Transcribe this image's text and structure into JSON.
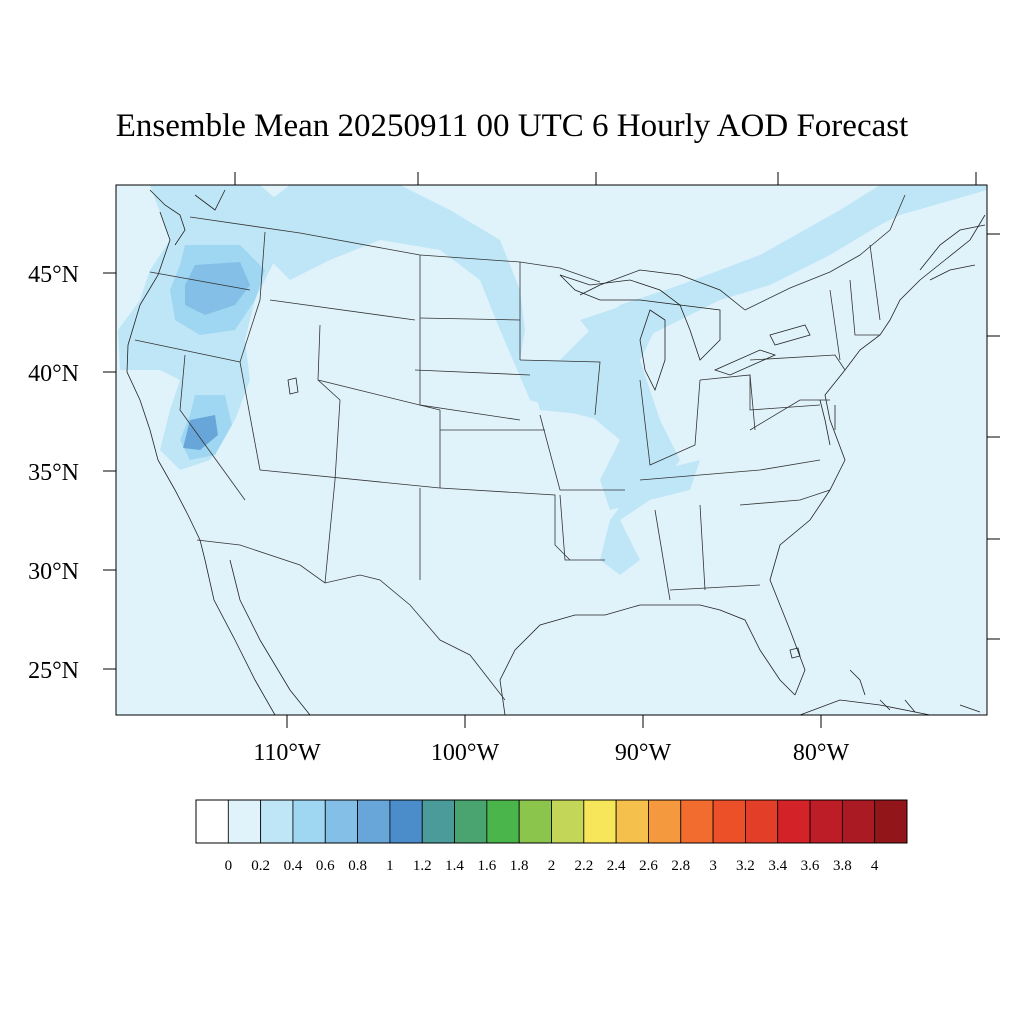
{
  "title": "Ensemble Mean 20250911 00 UTC 6 Hourly AOD Forecast",
  "lat_labels": [
    "45°N",
    "40°N",
    "35°N",
    "30°N",
    "25°N"
  ],
  "lon_labels": [
    "110°W",
    "100°W",
    "90°W",
    "80°W"
  ],
  "colorbar": {
    "labels": [
      "0",
      "0.2",
      "0.4",
      "0.6",
      "0.8",
      "1",
      "1.2",
      "1.4",
      "1.6",
      "1.8",
      "2",
      "2.2",
      "2.4",
      "2.6",
      "2.8",
      "3",
      "3.2",
      "3.4",
      "3.6",
      "3.8",
      "4"
    ],
    "colors": [
      "#ffffff",
      "#e0f3fb",
      "#bfe6f7",
      "#9fd7f3",
      "#83bfe6",
      "#68a6da",
      "#4b8dca",
      "#4a9b9a",
      "#49a46f",
      "#4ab54a",
      "#8bc54c",
      "#c4d657",
      "#f7e65a",
      "#f6c04c",
      "#f4993d",
      "#f26c30",
      "#ec5029",
      "#e33e27",
      "#d42229",
      "#bd1d26",
      "#aa1a22",
      "#921619"
    ]
  },
  "map": {
    "background_color": "#e0f3fb",
    "units": "AOD"
  }
}
